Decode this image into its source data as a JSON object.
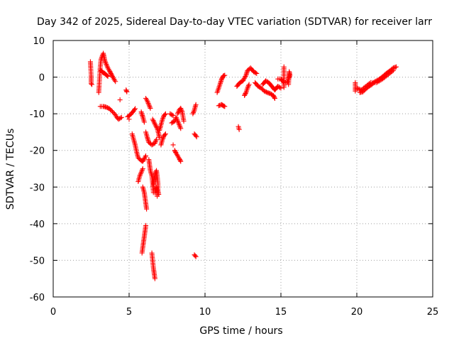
{
  "chart_data": {
    "type": "scatter",
    "title": "Day 342 of 2025, Sidereal Day-to-day VTEC variation (SDTVAR) for receiver larr",
    "xlabel": "GPS time / hours",
    "ylabel": "SDTVAR / TECUs",
    "xlim": [
      0,
      25
    ],
    "ylim": [
      -60,
      10
    ],
    "xticks": [
      0,
      5,
      10,
      15,
      20,
      25
    ],
    "xtick_labels": [
      "0",
      "5",
      "10",
      "15",
      "20",
      "25"
    ],
    "yticks": [
      10,
      0,
      -10,
      -20,
      -30,
      -40,
      -50,
      -60
    ],
    "ytick_labels": [
      "10",
      "0",
      "-10",
      "-20",
      "-30",
      "-40",
      "-50",
      "-60"
    ],
    "grid": true,
    "marker": "+",
    "color": "#ff0000",
    "series": [
      {
        "name": "SDTVAR",
        "segments": [
          [
            [
              2.45,
              4.2
            ],
            [
              2.5,
              0.5
            ],
            [
              2.5,
              -1.8
            ],
            [
              2.55,
              -2.0
            ]
          ],
          [
            [
              3.0,
              -4.2
            ],
            [
              3.1,
              2.8
            ],
            [
              3.15,
              4.8
            ],
            [
              3.3,
              6.5
            ],
            [
              3.35,
              5.5
            ],
            [
              3.4,
              4.5
            ],
            [
              3.5,
              3.5
            ],
            [
              3.6,
              2.5
            ],
            [
              3.7,
              1.8
            ],
            [
              3.8,
              1.0
            ],
            [
              3.9,
              0.2
            ],
            [
              4.0,
              -0.5
            ],
            [
              4.1,
              -1.2
            ]
          ],
          [
            [
              3.1,
              2.0
            ],
            [
              3.2,
              1.6
            ],
            [
              3.3,
              1.2
            ],
            [
              3.4,
              1.0
            ],
            [
              3.5,
              0.6
            ],
            [
              3.6,
              0.2
            ]
          ],
          [
            [
              3.1,
              -8.0
            ],
            [
              3.3,
              -8.0
            ],
            [
              3.5,
              -8.2
            ],
            [
              3.7,
              -8.6
            ],
            [
              3.9,
              -9.4
            ],
            [
              4.1,
              -10.3
            ],
            [
              4.2,
              -11.0
            ],
            [
              4.3,
              -11.5
            ],
            [
              4.5,
              -11.0
            ]
          ],
          [
            [
              4.4,
              -6.2
            ]
          ],
          [
            [
              4.8,
              -3.5
            ],
            [
              4.85,
              -4.0
            ]
          ],
          [
            [
              4.9,
              -10.8
            ],
            [
              5.1,
              -10.2
            ],
            [
              5.3,
              -9.2
            ],
            [
              5.4,
              -8.6
            ]
          ],
          [
            [
              5.0,
              -11.5
            ]
          ],
          [
            [
              5.2,
              -15.5
            ],
            [
              5.3,
              -17.0
            ],
            [
              5.4,
              -18.5
            ],
            [
              5.5,
              -20.5
            ],
            [
              5.6,
              -22.0
            ],
            [
              5.8,
              -22.8
            ],
            [
              5.9,
              -23.0
            ],
            [
              6.1,
              -21.5
            ]
          ],
          [
            [
              5.6,
              -28.5
            ],
            [
              5.7,
              -27.0
            ],
            [
              5.8,
              -26.0
            ],
            [
              5.9,
              -25.0
            ]
          ],
          [
            [
              5.8,
              -9.5
            ],
            [
              5.9,
              -10.8
            ],
            [
              6.0,
              -12.3
            ]
          ],
          [
            [
              5.9,
              -30.0
            ],
            [
              6.0,
              -31.5
            ],
            [
              6.05,
              -33.0
            ],
            [
              6.1,
              -34.5
            ],
            [
              6.15,
              -36.0
            ]
          ],
          [
            [
              5.85,
              -48.0
            ],
            [
              5.9,
              -46.5
            ],
            [
              5.95,
              -45.0
            ],
            [
              6.0,
              -43.5
            ],
            [
              6.05,
              -42.0
            ],
            [
              6.1,
              -40.5
            ]
          ],
          [
            [
              6.1,
              -5.8
            ],
            [
              6.2,
              -6.5
            ],
            [
              6.3,
              -7.5
            ],
            [
              6.4,
              -8.5
            ]
          ],
          [
            [
              6.1,
              -15.0
            ],
            [
              6.2,
              -16.5
            ],
            [
              6.3,
              -17.8
            ],
            [
              6.5,
              -18.5
            ],
            [
              6.7,
              -18.0
            ],
            [
              6.8,
              -17.0
            ]
          ],
          [
            [
              6.3,
              -22.5
            ],
            [
              6.35,
              -24.0
            ],
            [
              6.4,
              -25.5
            ],
            [
              6.5,
              -27.0
            ],
            [
              6.55,
              -29.0
            ],
            [
              6.6,
              -31.5
            ]
          ],
          [
            [
              6.5,
              -48.0
            ],
            [
              6.55,
              -50.0
            ],
            [
              6.6,
              -52.0
            ],
            [
              6.65,
              -53.5
            ],
            [
              6.7,
              -55.0
            ]
          ],
          [
            [
              6.55,
              -11.5
            ],
            [
              6.7,
              -12.8
            ],
            [
              6.85,
              -14.0
            ],
            [
              6.95,
              -15.5
            ],
            [
              7.0,
              -16.5
            ]
          ],
          [
            [
              6.6,
              -29.5
            ],
            [
              6.65,
              -28.0
            ],
            [
              6.7,
              -26.5
            ],
            [
              6.8,
              -25.5
            ],
            [
              6.85,
              -27.0
            ],
            [
              6.9,
              -29.0
            ],
            [
              6.9,
              -31.0
            ],
            [
              6.95,
              -32.0
            ]
          ],
          [
            [
              6.7,
              -31.5
            ],
            [
              6.8,
              -30.0
            ],
            [
              6.85,
              -32.5
            ]
          ],
          [
            [
              7.0,
              -14.5
            ],
            [
              7.1,
              -13.0
            ],
            [
              7.2,
              -11.5
            ],
            [
              7.3,
              -10.5
            ],
            [
              7.4,
              -10.0
            ]
          ],
          [
            [
              7.1,
              -18.5
            ],
            [
              7.2,
              -17.0
            ],
            [
              7.3,
              -16.0
            ],
            [
              7.4,
              -15.5
            ]
          ],
          [
            [
              7.7,
              -10.0
            ],
            [
              7.9,
              -10.5
            ]
          ],
          [
            [
              7.8,
              -12.5
            ],
            [
              8.0,
              -12.0
            ],
            [
              8.1,
              -11.0
            ],
            [
              8.3,
              -13.0
            ],
            [
              8.4,
              -14.0
            ]
          ],
          [
            [
              7.9,
              -18.5
            ]
          ],
          [
            [
              8.0,
              -20.0
            ],
            [
              8.1,
              -20.8
            ],
            [
              8.2,
              -21.5
            ],
            [
              8.3,
              -22.2
            ],
            [
              8.4,
              -23.0
            ]
          ],
          [
            [
              8.2,
              -10.0
            ],
            [
              8.3,
              -9.0
            ],
            [
              8.4,
              -8.5
            ],
            [
              8.5,
              -9.5
            ],
            [
              8.6,
              -12.0
            ]
          ],
          [
            [
              9.2,
              -10.0
            ],
            [
              9.3,
              -9.0
            ],
            [
              9.35,
              -8.2
            ],
            [
              9.4,
              -7.5
            ]
          ],
          [
            [
              9.3,
              -15.5
            ],
            [
              9.4,
              -16.0
            ],
            [
              9.45,
              -16.3
            ]
          ],
          [
            [
              9.3,
              -48.5
            ],
            [
              9.4,
              -49.0
            ]
          ],
          [
            [
              10.8,
              -4.2
            ],
            [
              10.9,
              -3.0
            ],
            [
              11.0,
              -1.8
            ],
            [
              11.1,
              -0.5
            ],
            [
              11.2,
              0.3
            ],
            [
              11.3,
              0.5
            ]
          ],
          [
            [
              10.9,
              -7.8
            ],
            [
              11.1,
              -7.5
            ],
            [
              11.2,
              -7.8
            ],
            [
              11.3,
              -8.0
            ]
          ],
          [
            [
              12.2,
              -13.5
            ],
            [
              12.25,
              -14.3
            ]
          ],
          [
            [
              12.1,
              -2.5
            ],
            [
              12.3,
              -1.5
            ],
            [
              12.5,
              -1.0
            ],
            [
              12.7,
              0.5
            ],
            [
              12.8,
              1.8
            ],
            [
              13.0,
              2.5
            ],
            [
              13.2,
              1.5
            ],
            [
              13.4,
              1.0
            ]
          ],
          [
            [
              12.6,
              -5.0
            ],
            [
              12.7,
              -4.2
            ],
            [
              12.8,
              -3.0
            ],
            [
              12.9,
              -2.0
            ]
          ],
          [
            [
              13.3,
              -1.5
            ],
            [
              13.5,
              -2.5
            ],
            [
              13.7,
              -3.0
            ],
            [
              13.9,
              -3.8
            ],
            [
              14.1,
              -4.2
            ],
            [
              14.3,
              -4.5
            ],
            [
              14.5,
              -5.0
            ],
            [
              14.6,
              -5.8
            ]
          ],
          [
            [
              13.8,
              -2.0
            ],
            [
              14.0,
              -1.0
            ],
            [
              14.2,
              -1.5
            ],
            [
              14.4,
              -2.5
            ],
            [
              14.6,
              -3.5
            ],
            [
              14.8,
              -2.5
            ],
            [
              15.0,
              -3.0
            ]
          ],
          [
            [
              14.8,
              -0.5
            ],
            [
              15.0,
              -0.5
            ],
            [
              15.2,
              -1.5
            ],
            [
              15.4,
              -1.5
            ],
            [
              15.6,
              0.5
            ],
            [
              15.55,
              1.5
            ],
            [
              15.5,
              -2.0
            ]
          ],
          [
            [
              15.2,
              2.8
            ],
            [
              15.2,
              -2.8
            ]
          ],
          [
            [
              19.9,
              -1.5
            ],
            [
              19.9,
              -3.8
            ]
          ],
          [
            [
              20.2,
              -4.2
            ],
            [
              20.4,
              -4.0
            ],
            [
              20.6,
              -3.2
            ],
            [
              20.8,
              -2.5
            ],
            [
              21.0,
              -2.0
            ],
            [
              21.2,
              -1.2
            ],
            [
              21.4,
              -0.8
            ],
            [
              21.6,
              -0.2
            ],
            [
              21.8,
              0.5
            ],
            [
              22.0,
              1.2
            ],
            [
              22.2,
              1.8
            ],
            [
              22.4,
              2.5
            ],
            [
              22.6,
              2.8
            ]
          ],
          [
            [
              20.0,
              -3.0
            ],
            [
              20.3,
              -3.5
            ],
            [
              20.6,
              -2.5
            ],
            [
              20.9,
              -1.5
            ],
            [
              21.3,
              -1.5
            ],
            [
              21.7,
              -0.5
            ],
            [
              22.0,
              0.5
            ],
            [
              22.4,
              1.8
            ]
          ]
        ]
      }
    ]
  }
}
